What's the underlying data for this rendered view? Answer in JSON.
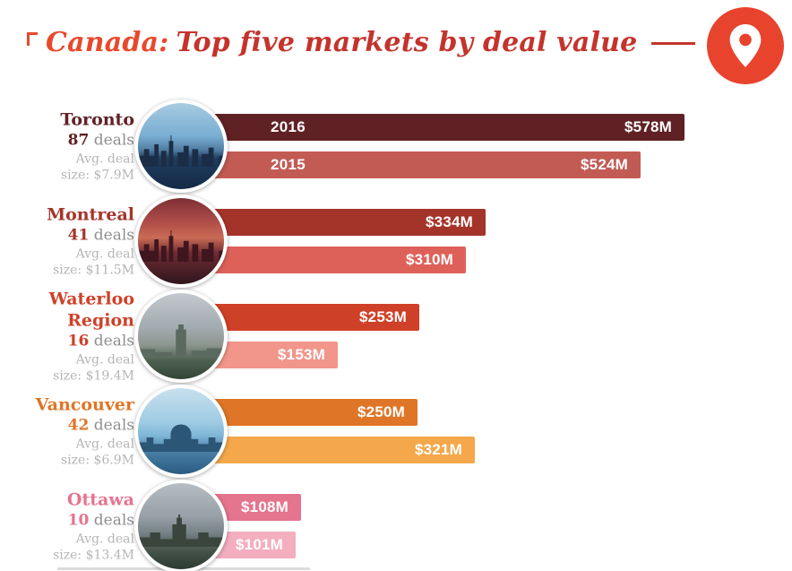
{
  "header": {
    "title_prefix": "Canada:",
    "title_rest": "Top five markets by deal value",
    "accent_color": "#e8492c",
    "title_color": "#c4332c",
    "icon": "map-pin-icon",
    "icon_color": "#e8432d"
  },
  "chart_data": {
    "type": "bar",
    "title": "Canada: Top five markets by deal value",
    "orientation": "horizontal",
    "unit": "$M",
    "series": [
      "2016",
      "2015"
    ],
    "xlim": [
      0,
      578
    ],
    "markets": [
      {
        "name": "Toronto",
        "deal_count": "87",
        "deals_word": "deals",
        "avg_line1": "Avg. deal",
        "avg_line2": "size: $7.9M",
        "values": [
          578,
          524
        ],
        "labels": [
          "$578M",
          "$524M"
        ],
        "colors": [
          "#602125",
          "#c25b54"
        ],
        "photo": "toronto-skyline-photo"
      },
      {
        "name": "Montreal",
        "deal_count": "41",
        "deals_word": "deals",
        "avg_line1": "Avg. deal",
        "avg_line2": "size: $11.5M",
        "values": [
          334,
          310
        ],
        "labels": [
          "$334M",
          "$310M"
        ],
        "colors": [
          "#a4342a",
          "#de6159"
        ],
        "photo": "montreal-skyline-photo"
      },
      {
        "name": "Waterloo Region",
        "deal_count": "16",
        "deals_word": "deals",
        "avg_line1": "Avg. deal",
        "avg_line2": "size: $19.4M",
        "values": [
          253,
          153
        ],
        "labels": [
          "$253M",
          "$153M"
        ],
        "colors": [
          "#cf4028",
          "#f2958b"
        ],
        "photo": "waterloo-tower-photo"
      },
      {
        "name": "Vancouver",
        "deal_count": "42",
        "deals_word": "deals",
        "avg_line1": "Avg. deal",
        "avg_line2": "size: $6.9M",
        "values": [
          250,
          321
        ],
        "labels": [
          "$250M",
          "$321M"
        ],
        "colors": [
          "#df7526",
          "#f4a84b"
        ],
        "photo": "vancouver-waterfront-photo"
      },
      {
        "name": "Ottawa",
        "deal_count": "10",
        "deals_word": "deals",
        "avg_line1": "Avg. deal",
        "avg_line2": "size: $13.4M",
        "values": [
          108,
          101
        ],
        "labels": [
          "$108M",
          "$101M"
        ],
        "colors": [
          "#e5748f",
          "#f3aebf"
        ],
        "photo": "ottawa-parliament-photo"
      }
    ]
  }
}
